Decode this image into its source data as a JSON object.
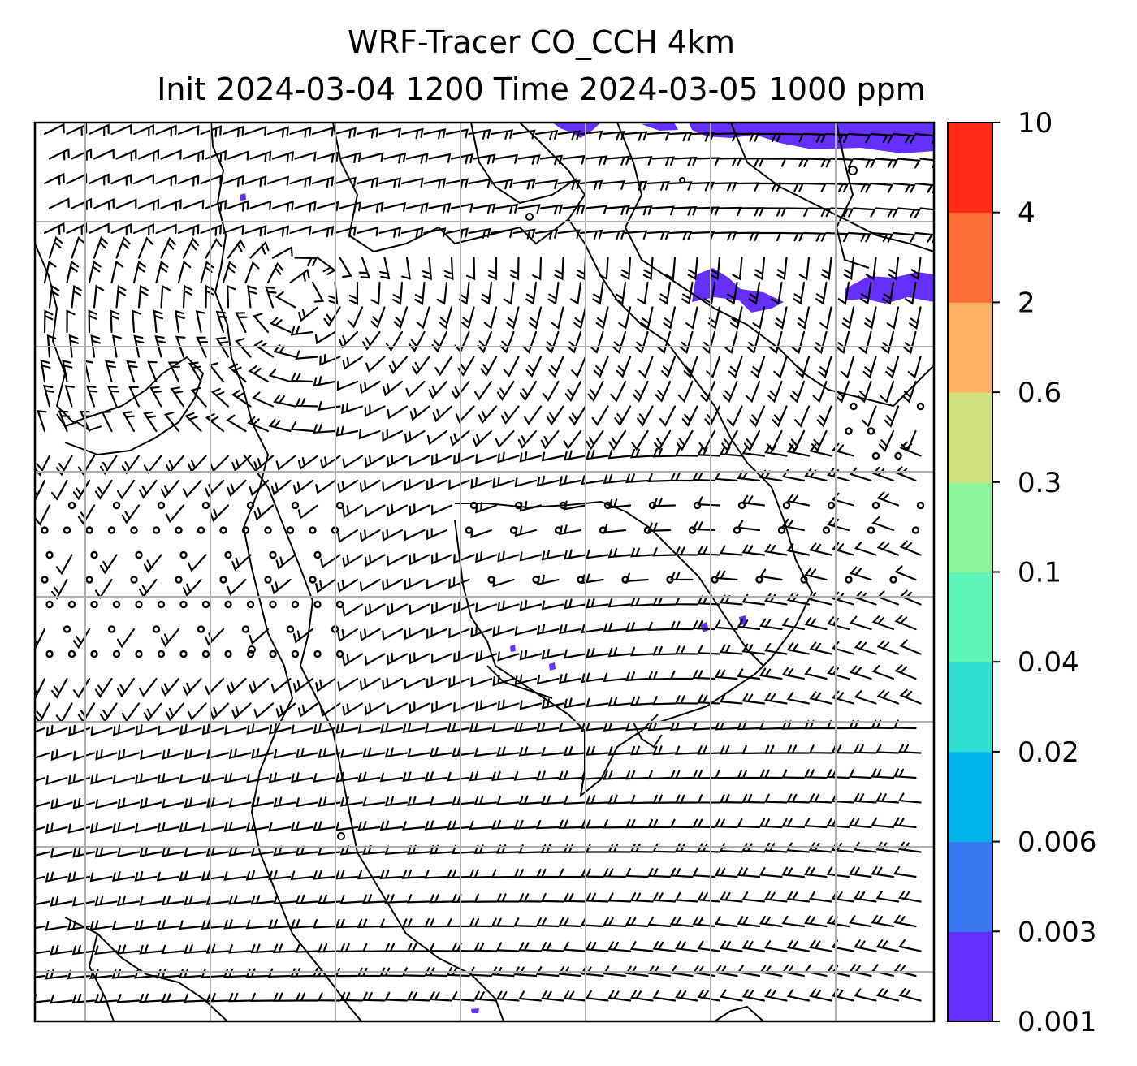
{
  "title": {
    "line1": "WRF-Tracer CO_CCH 4km",
    "line2": "Init 2024-03-04 1200 Time 2024-03-05 1000 ppm"
  },
  "colorbar": {
    "ticks": [
      "0.001",
      "0.003",
      "0.006",
      "0.02",
      "0.04",
      "0.1",
      "0.3",
      "0.6",
      "2",
      "4",
      "10"
    ],
    "colors": [
      "#6530ff",
      "#3578f0",
      "#00b3e8",
      "#2fe0d0",
      "#5ef5b8",
      "#8ef59a",
      "#d1e07c",
      "#fcb260",
      "#ff7038",
      "#ff2a18"
    ]
  },
  "map": {
    "gridlines": true,
    "coastline_color": "#000000",
    "tracer_color": "#6530ff"
  }
}
